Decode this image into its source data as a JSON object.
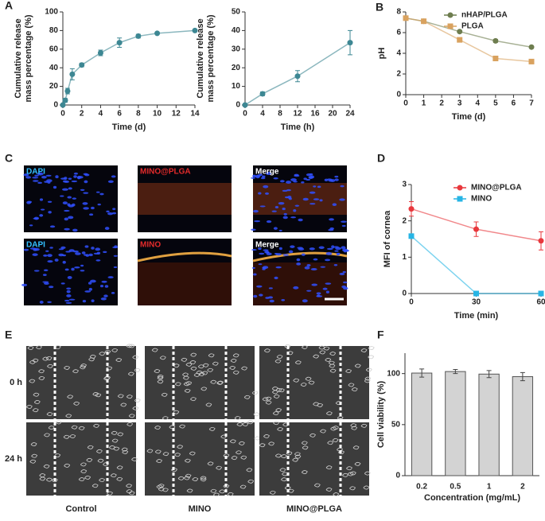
{
  "panel_letters": [
    "A",
    "B",
    "C",
    "D",
    "E",
    "F"
  ],
  "panel_c": {
    "labels": [
      "DAPI",
      "MINO@PLGA",
      "Merge",
      "DAPI",
      "MINO",
      "Merge"
    ]
  },
  "panel_e": {
    "rows": [
      "0 h",
      "24 h"
    ],
    "columns": [
      "Control",
      "MINO",
      "MINO@PLGA"
    ]
  },
  "chart_data": [
    {
      "type": "line",
      "xlabel": "Time (d)",
      "ylabel": [
        "Cumulative release",
        "mass percentage (%)"
      ],
      "x": [
        0,
        0.25,
        0.5,
        1,
        2,
        4,
        6,
        8,
        10,
        14
      ],
      "values": [
        0,
        5,
        15,
        33,
        43,
        56,
        67,
        74,
        77,
        80
      ],
      "errors": [
        0,
        2,
        3,
        6,
        2,
        3,
        5,
        2,
        1,
        1
      ],
      "color": "#3d8793",
      "marker": "circle",
      "xlim": [
        0,
        14
      ],
      "xticks": [
        0,
        2,
        4,
        6,
        8,
        10,
        12,
        14
      ],
      "ylim": [
        0,
        100
      ],
      "yticks": [
        0,
        20,
        40,
        60,
        80,
        100
      ]
    },
    {
      "type": "line",
      "xlabel": "Time (h)",
      "ylabel": [
        "Cumulative release",
        "mass percentage (%)"
      ],
      "x": [
        0,
        4,
        12,
        24
      ],
      "values": [
        0,
        6,
        15.5,
        33.5
      ],
      "errors": [
        0,
        1,
        3,
        6.5
      ],
      "color": "#3d8793",
      "marker": "circle",
      "xlim": [
        0,
        24
      ],
      "xticks": [
        0,
        4,
        8,
        12,
        16,
        20,
        24
      ],
      "ylim": [
        0,
        50
      ],
      "yticks": [
        0,
        10,
        20,
        30,
        40,
        50
      ]
    },
    {
      "type": "line",
      "xlabel": "Time (d)",
      "ylabel": "pH",
      "legend": "upper right",
      "x": [
        0,
        1,
        3,
        5,
        7
      ],
      "series": [
        {
          "name": "nHAP/PLGA",
          "color": "#6e7d4f",
          "marker": "circle",
          "values": [
            7.4,
            7.1,
            6.1,
            5.2,
            4.6
          ],
          "errors": [
            0.1,
            0.1,
            0.1,
            0.15,
            0.1
          ]
        },
        {
          "name": "PLGA",
          "color": "#d9a25f",
          "marker": "square",
          "values": [
            7.4,
            7.1,
            5.3,
            3.5,
            3.2
          ],
          "errors": [
            0.1,
            0.1,
            0.1,
            0.1,
            0.1
          ]
        }
      ],
      "xlim": [
        0,
        7
      ],
      "xticks": [
        0,
        1,
        2,
        3,
        4,
        5,
        6,
        7
      ],
      "ylim": [
        0,
        8
      ],
      "yticks": [
        0,
        2,
        4,
        6,
        8
      ]
    },
    {
      "type": "line",
      "xlabel": "Time (min)",
      "ylabel": "MFI of cornea",
      "legend": "upper right",
      "x": [
        0,
        30,
        60
      ],
      "series": [
        {
          "name": "MINO@PLGA",
          "color": "#e8383d",
          "marker": "circle",
          "values": [
            2.33,
            1.77,
            1.45
          ],
          "errors": [
            0.2,
            0.2,
            0.25
          ]
        },
        {
          "name": "MINO",
          "color": "#27b5e5",
          "marker": "square",
          "values": [
            1.58,
            0,
            0
          ],
          "errors": [
            0.05,
            0,
            0
          ]
        }
      ],
      "xlim": [
        0,
        60
      ],
      "xticks": [
        0,
        30,
        60
      ],
      "ylim": [
        0,
        3
      ],
      "yticks": [
        0,
        1,
        2,
        3
      ]
    },
    {
      "type": "bar",
      "xlabel": "Concentration  (mg/mL)",
      "ylabel": "Cell viability (%)",
      "categories": [
        "0.2",
        "0.5",
        "1",
        "2"
      ],
      "values": [
        100.5,
        102,
        99.5,
        97
      ],
      "errors": [
        4,
        2,
        3.5,
        4
      ],
      "color": "#d3d3d3",
      "ylim": [
        0,
        120
      ],
      "yticks": [
        0,
        50,
        100
      ]
    }
  ]
}
